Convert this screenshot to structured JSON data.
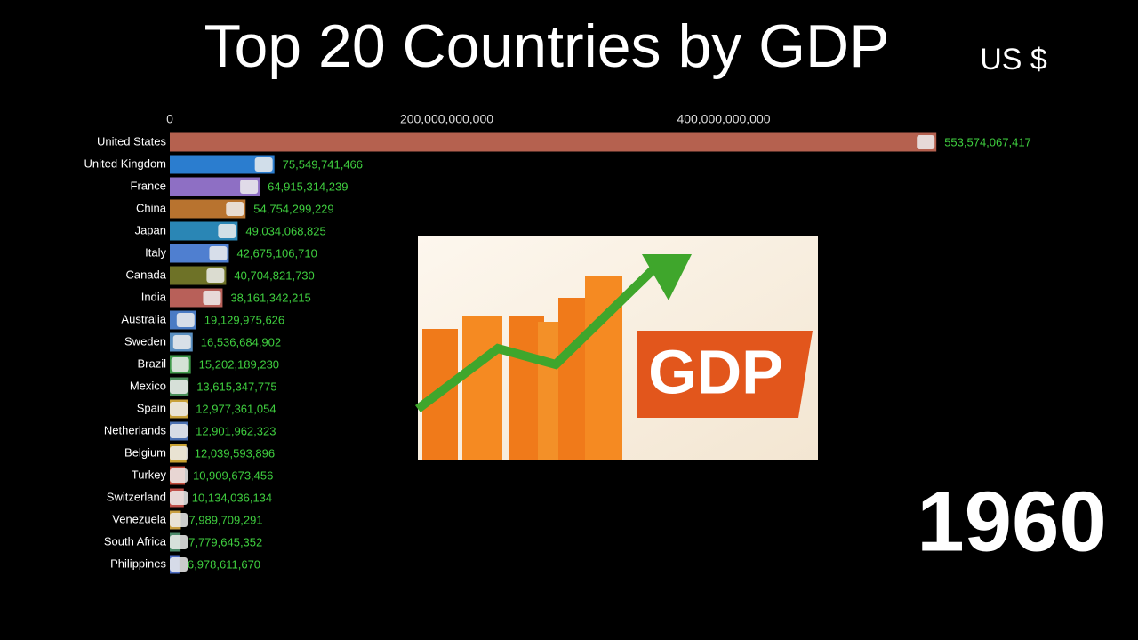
{
  "chart_data": {
    "type": "bar",
    "orientation": "horizontal",
    "title": "Top 20 Countries by GDP",
    "subtitle": "US $",
    "year": "1960",
    "image_text": "GDP",
    "categories": [
      "United States",
      "United Kingdom",
      "France",
      "China",
      "Japan",
      "Italy",
      "Canada",
      "India",
      "Australia",
      "Sweden",
      "Brazil",
      "Mexico",
      "Spain",
      "Netherlands",
      "Belgium",
      "Turkey",
      "Switzerland",
      "Venezuela",
      "South Africa",
      "Philippines"
    ],
    "values": [
      553574067417,
      75549741466,
      64915314239,
      54754299229,
      49034068825,
      42675106710,
      40704821730,
      38161342215,
      19129975626,
      16536684902,
      15202189230,
      13615347775,
      12977361054,
      12901962323,
      12039593896,
      10909673456,
      10134036134,
      7989709291,
      7779645352,
      6978611670
    ],
    "value_labels": [
      "553,574,067,417",
      "75,549,741,466",
      "64,915,314,239",
      "54,754,299,229",
      "49,034,068,825",
      "42,675,106,710",
      "40,704,821,730",
      "38,161,342,215",
      "19,129,975,626",
      "16,536,684,902",
      "15,202,189,230",
      "13,615,347,775",
      "12,977,361,054",
      "12,901,962,323",
      "12,039,593,896",
      "10,909,673,456",
      "10,134,036,134",
      "7,989,709,291",
      "7,779,645,352",
      "6,978,611,670"
    ],
    "colors": [
      "#b5614f",
      "#2b7dcf",
      "#8e6fc4",
      "#b8732f",
      "#2a86b5",
      "#4f7fd0",
      "#6e7227",
      "#b86059",
      "#4a7bc4",
      "#5a8fc0",
      "#3f9a4a",
      "#4a8f5a",
      "#c9a23a",
      "#4a6fb0",
      "#c7a030",
      "#c04a3a",
      "#c0504a",
      "#c9a040",
      "#4a8a6a",
      "#4a6ac0"
    ],
    "xlim": [
      0,
      600000000000
    ],
    "xticks": [
      0,
      {
        "value": 200000000000,
        "label": "200,000,000,000"
      },
      {
        "value": 400000000000,
        "label": "400,000,000,000"
      }
    ]
  }
}
